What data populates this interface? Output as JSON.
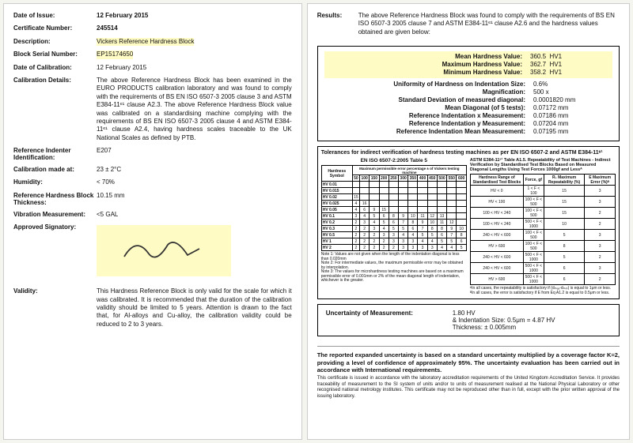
{
  "left": {
    "dateOfIssue": {
      "label": "Date of Issue:",
      "value": "12 February 2015"
    },
    "certNo": {
      "label": "Certificate Number:",
      "value": "245514"
    },
    "description": {
      "label": "Description:",
      "value": "Vickers Reference Hardness Block"
    },
    "serial": {
      "label": "Block Serial Number:",
      "value": "EP15174650"
    },
    "dateCal": {
      "label": "Date of Calibration:",
      "value": "12 February 2015"
    },
    "calDetails": {
      "label": "Calibration Details:",
      "value": "The above Reference Hardness Block has been examined in the EURO PRODUCTS calibration laboratory and was found to comply with the requirements of BS EN ISO 6507-3 2005 clause 3 and ASTM E384-11ᵉ¹ clause A2.3. The above Reference Hardness Block value was calibrated on a standardising machine complying with the requirements of BS EN ISO 6507-3 2005 clause 4 and ASTM E384-11ᵉ¹ clause A2.4, having hardness scales traceable to the UK National Scales as defined by PTB."
    },
    "indenter": {
      "label": "Reference Indenter Identification:",
      "value": "E207"
    },
    "calAt": {
      "label": "Calibration made at:",
      "value": "23 ± 2°C"
    },
    "humidity": {
      "label": "Humidity:",
      "value": "< 70%"
    },
    "thickness": {
      "label": "Reference Hardness Block Thickness:",
      "value": "10.15 mm"
    },
    "vibration": {
      "label": "Vibration Measurement:",
      "value": "<5 GAL"
    },
    "signatory": {
      "label": "Approved Signatory:"
    },
    "validity": {
      "label": "Validity:",
      "value": "This Hardness Reference Block is only valid for the scale for which it was calibrated. It is recommended that the duration of the calibration validity should be limited to 5 years. Attention is drawn to the fact that, for Al-alloys and Cu-alloy, the calibration validity could be reduced to 2 to 3 years."
    }
  },
  "right": {
    "resultsLabel": "Results:",
    "resultsIntro": "The above Reference Hardness Block was found to comply with the requirements of BS EN ISO 6507-3 2005 clause 7 and ASTM E384-11ᵉ¹ clause A2.6 and the hardness values obtained are given below:",
    "mean": {
      "k": "Mean Hardness Value:",
      "v": "360.5",
      "u": "HV1"
    },
    "max": {
      "k": "Maximum Hardness Value:",
      "v": "362.7",
      "u": "HV1"
    },
    "min": {
      "k": "Minimum Hardness Value:",
      "v": "358.2",
      "u": "HV1"
    },
    "uniformity": {
      "k": "Uniformity of Hardness on Indentation Size:",
      "v": "0.6%"
    },
    "mag": {
      "k": "Magnification:",
      "v": "500 x"
    },
    "stddev": {
      "k": "Standard Deviation of measured diagonal:",
      "v": "0.0001820 mm"
    },
    "diag": {
      "k": "Mean Diagonal (of 5 tests):",
      "v": "0.07172 mm"
    },
    "refx": {
      "k": "Reference Indentation x Measurement:",
      "v": "0.07186 mm"
    },
    "refy": {
      "k": "Reference Indentation y Measurement:",
      "v": "0.07204 mm"
    },
    "refmean": {
      "k": "Reference Indentation Mean Measurement:",
      "v": "0.07195 mm"
    },
    "tolHeader": "Tolerances for indirect verification of hardness testing machines as per EN ISO 6507-2 and ASTM E384-11ᵉ¹",
    "tolLeftTitle": "EN ISO 6507-2:2005 Table 5",
    "tolRightTitle": "ASTM E384-11ᵉ¹ Table A1.5. Repeatability of Test Machines - Indirect Verification by Standardised Test Blocks Based on Measured Diagonal Lengths Using Test Forces 1000gf and Lessᴬ",
    "tolLeftRows": [
      [
        "HV 0.01",
        "",
        "",
        "",
        "",
        "",
        "",
        "",
        "",
        "",
        "",
        "",
        ""
      ],
      [
        "HV 0.015",
        "",
        "",
        "",
        "",
        "",
        "",
        "",
        "",
        "",
        "",
        "",
        ""
      ],
      [
        "HV 0.02",
        "15",
        "",
        "",
        "",
        "",
        "",
        "",
        "",
        "",
        "",
        "",
        ""
      ],
      [
        "HV 0.025",
        "4",
        "16",
        "",
        "",
        "",
        "",
        "",
        "",
        "",
        "",
        "",
        ""
      ],
      [
        "HV 0.05",
        "4",
        "6",
        "9",
        "15",
        "",
        "",
        "",
        "",
        "",
        "",
        "",
        ""
      ],
      [
        "HV 0.1",
        "3",
        "4",
        "5",
        "6",
        "8",
        "9",
        "10",
        "11",
        "12",
        "13",
        "",
        ""
      ],
      [
        "HV 0.2",
        "2",
        "3",
        "4",
        "5",
        "6",
        "7",
        "8",
        "9",
        "10",
        "11",
        "12",
        ""
      ],
      [
        "HV 0.3",
        "2",
        "2",
        "3",
        "4",
        "5",
        "5",
        "6",
        "7",
        "8",
        "8",
        "9",
        "10"
      ],
      [
        "HV 0.5",
        "2",
        "2",
        "2",
        "3",
        "3",
        "4",
        "4",
        "5",
        "5",
        "6",
        "7",
        "8"
      ],
      [
        "HV 1",
        "2",
        "2",
        "2",
        "2",
        "3",
        "3",
        "3",
        "4",
        "4",
        "5",
        "5",
        "6"
      ],
      [
        "HV 2",
        "2",
        "2",
        "2",
        "2",
        "2",
        "3",
        "3",
        "3",
        "3",
        "4",
        "4",
        "5"
      ]
    ],
    "tolLeftNote": "Note 1: Values are not given when the length of the indentation diagonal is less than 0.020mm\nNote 2: For intermediate values, the maximum permissible error may be obtained by interpolation.\nNote 3: The values for microhardness testing machines are based on a maximum permissible error of 0.001mm or 2% of the mean diagonal length of indentation, whichever is the greater.",
    "tolRightRows": [
      [
        "HV < 0",
        "1 < F < 100",
        "15",
        "3"
      ],
      [
        "HV < 100",
        "100 < F < 500",
        "15",
        "3"
      ],
      [
        "100 < HV < 240",
        "100 < F < 500",
        "15",
        "2"
      ],
      [
        "100 < HV < 240",
        "500 < F < 1000",
        "10",
        "2"
      ],
      [
        "240 < HV < 600",
        "100 < F < 500",
        "5",
        "3"
      ],
      [
        "HV > 600",
        "100 < F < 500",
        "8",
        "3"
      ],
      [
        "240 < HV < 600",
        "500 < F < 1000",
        "5",
        "2"
      ],
      [
        "240 < HV < 600",
        "500 < F < 1000",
        "6",
        "3"
      ],
      [
        "HV > 600",
        "500 < F < 1000",
        "6",
        "2"
      ]
    ],
    "tolRightNote": "ᴬIn all cases, the repeatability is satisfactory if (dₘₐₓ-dₘᵢₙ) is equal to 1μm or less.\nᴮIn all cases, the error is satisfactory if E from Eq A1.2 is equal to 0.5μm or less.",
    "uncertainty": {
      "label": "Uncertainty of Measurement:",
      "line1": "1.80 HV",
      "line2": "& Indentation Size: 0.5μm = 4.87 HV",
      "line3": "Thickness: ± 0.005mm"
    },
    "footerBold": "The reported expanded uncertainty is based on a standard uncertainty multiplied by a coverage factor K=2, providing a level of confidence of approximately 95%. The uncertainty evaluation has been carried out in accordance with International requirements.",
    "footerSmall": "This certificate is issued in accordance with the laboratory accreditation requirements of the United Kingdom Accreditation Service. It provides traceability of measurement to the SI system of units and/or to units of measurement realised at the National Physical Laboratory or other recognised national metrology institutes. This certificate may not be reproduced other than in full, except with the prior written approval of the issuing laboratory."
  },
  "colors": {
    "highlight": "#fffbc4",
    "border": "#000000",
    "pageBg": "#ffffff",
    "bodyBg": "#f5f5f0"
  }
}
